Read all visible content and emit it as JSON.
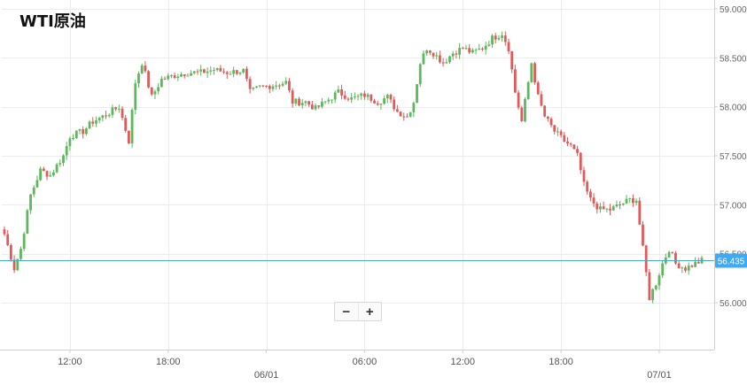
{
  "title": "WTI原油",
  "zoom": {
    "minus": "−",
    "plus": "+"
  },
  "chart_data": {
    "type": "candlestick",
    "title": "WTI原油",
    "current_price": {
      "label": "56.435",
      "value": 56.435
    },
    "ylim": [
      55.62,
      59.1
    ],
    "y_ticks": [
      {
        "value": 59.0,
        "label": "59.000"
      },
      {
        "value": 58.5,
        "label": "58.500"
      },
      {
        "value": 58.0,
        "label": "58.000"
      },
      {
        "value": 57.5,
        "label": "57.500"
      },
      {
        "value": 57.0,
        "label": "57.000"
      },
      {
        "value": 56.5,
        "label": "56.500"
      },
      {
        "value": 56.0,
        "label": "56.000"
      }
    ],
    "x_ticks": [
      {
        "index": 20,
        "label": "12:00",
        "sub": ""
      },
      {
        "index": 50,
        "label": "18:00",
        "sub": ""
      },
      {
        "index": 80,
        "label": "",
        "sub": "06/01"
      },
      {
        "index": 110,
        "label": "06:00",
        "sub": ""
      },
      {
        "index": 140,
        "label": "12:00",
        "sub": ""
      },
      {
        "index": 170,
        "label": "18:00",
        "sub": ""
      },
      {
        "index": 200,
        "label": "",
        "sub": "07/01"
      }
    ],
    "grid": true,
    "colors": {
      "up": "#5cb85c",
      "down": "#e05a5a",
      "price_line": "#4aaec4",
      "price_label_bg": "#3fa9f5",
      "grid": "#ececec"
    },
    "key_points": [
      [
        0,
        56.7
      ],
      [
        3,
        56.35
      ],
      [
        5,
        56.55
      ],
      [
        8,
        57.1
      ],
      [
        11,
        57.35
      ],
      [
        14,
        57.3
      ],
      [
        18,
        57.5
      ],
      [
        20,
        57.7
      ],
      [
        24,
        57.75
      ],
      [
        27,
        57.85
      ],
      [
        30,
        57.9
      ],
      [
        35,
        58.0
      ],
      [
        38,
        57.65
      ],
      [
        40,
        58.25
      ],
      [
        42,
        58.45
      ],
      [
        45,
        58.1
      ],
      [
        48,
        58.28
      ],
      [
        52,
        58.32
      ],
      [
        56,
        58.35
      ],
      [
        60,
        58.35
      ],
      [
        64,
        58.38
      ],
      [
        68,
        58.35
      ],
      [
        73,
        58.37
      ],
      [
        75,
        58.15
      ],
      [
        78,
        58.2
      ],
      [
        82,
        58.22
      ],
      [
        86,
        58.25
      ],
      [
        88,
        58.05
      ],
      [
        92,
        58.05
      ],
      [
        95,
        57.98
      ],
      [
        98,
        58.05
      ],
      [
        102,
        58.15
      ],
      [
        106,
        58.08
      ],
      [
        110,
        58.12
      ],
      [
        114,
        58.05
      ],
      [
        117,
        58.1
      ],
      [
        120,
        57.95
      ],
      [
        123,
        57.9
      ],
      [
        125,
        58.05
      ],
      [
        127,
        58.45
      ],
      [
        129,
        58.6
      ],
      [
        131,
        58.55
      ],
      [
        134,
        58.45
      ],
      [
        137,
        58.55
      ],
      [
        140,
        58.6
      ],
      [
        143,
        58.55
      ],
      [
        146,
        58.6
      ],
      [
        149,
        58.7
      ],
      [
        152,
        58.75
      ],
      [
        154,
        58.6
      ],
      [
        156,
        58.15
      ],
      [
        158,
        57.85
      ],
      [
        161,
        58.45
      ],
      [
        163,
        58.1
      ],
      [
        165,
        57.9
      ],
      [
        168,
        57.75
      ],
      [
        171,
        57.65
      ],
      [
        173,
        57.6
      ],
      [
        175,
        57.5
      ],
      [
        177,
        57.2
      ],
      [
        179,
        57.05
      ],
      [
        182,
        56.95
      ],
      [
        185,
        56.95
      ],
      [
        188,
        57.0
      ],
      [
        191,
        57.05
      ],
      [
        193,
        57.05
      ],
      [
        195,
        56.55
      ],
      [
        197,
        56.05
      ],
      [
        199,
        56.2
      ],
      [
        201,
        56.4
      ],
      [
        203,
        56.55
      ],
      [
        205,
        56.4
      ],
      [
        208,
        56.35
      ],
      [
        211,
        56.4
      ],
      [
        213,
        56.43
      ]
    ]
  }
}
